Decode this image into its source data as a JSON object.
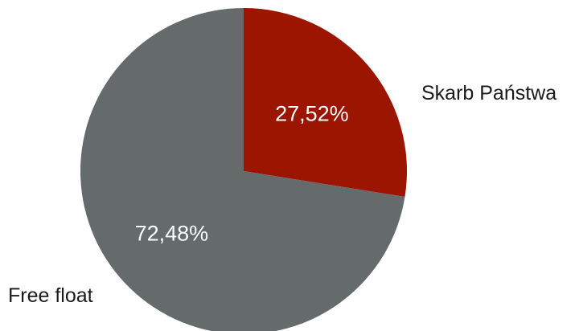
{
  "chart_data": {
    "type": "pie",
    "slices": [
      {
        "label": "Skarb Państwa",
        "value": 27.52,
        "value_label": "27,52%",
        "color": "#9b1500"
      },
      {
        "label": "Free float",
        "value": 72.48,
        "value_label": "72,48%",
        "color": "#656a6b"
      }
    ],
    "start": "top",
    "direction": "clockwise"
  }
}
